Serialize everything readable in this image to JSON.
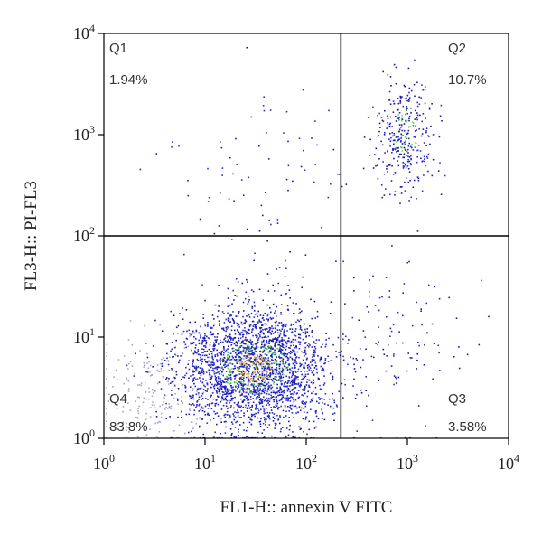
{
  "chart_data": {
    "type": "scatter",
    "xlabel": "FL1-H:: annexin V FITC",
    "ylabel": "FL3-H:: PI-FL3",
    "x_scale": "log",
    "y_scale": "log",
    "xlim": [
      1,
      10000
    ],
    "ylim": [
      1,
      10000
    ],
    "x_ticks": [
      {
        "value": 1,
        "base": "10",
        "exp": "0"
      },
      {
        "value": 10,
        "base": "10",
        "exp": "1"
      },
      {
        "value": 100,
        "base": "10",
        "exp": "2"
      },
      {
        "value": 1000,
        "base": "10",
        "exp": "3"
      },
      {
        "value": 10000,
        "base": "10",
        "exp": "4"
      }
    ],
    "y_ticks": [
      {
        "value": 1,
        "base": "10",
        "exp": "0"
      },
      {
        "value": 10,
        "base": "10",
        "exp": "1"
      },
      {
        "value": 100,
        "base": "10",
        "exp": "2"
      },
      {
        "value": 1000,
        "base": "10",
        "exp": "3"
      },
      {
        "value": 10000,
        "base": "10",
        "exp": "4"
      }
    ],
    "gates": {
      "x": 220,
      "y": 100
    },
    "quadrants": [
      {
        "name": "Q1",
        "percent": "1.94%",
        "position": "top-left"
      },
      {
        "name": "Q2",
        "percent": "10.7%",
        "position": "top-right"
      },
      {
        "name": "Q3",
        "percent": "3.58%",
        "position": "bottom-right"
      },
      {
        "name": "Q4",
        "percent": "83.8%",
        "position": "bottom-left"
      }
    ],
    "populations": [
      {
        "quadrant": "Q4",
        "center": [
          30,
          5
        ],
        "spread_log": [
          0.38,
          0.3
        ],
        "count": 2600
      },
      {
        "quadrant": "Q4",
        "center": [
          3,
          3
        ],
        "spread_log": [
          0.3,
          0.25
        ],
        "count": 180
      },
      {
        "quadrant": "Q2",
        "center": [
          950,
          1000
        ],
        "spread_log": [
          0.15,
          0.28
        ],
        "count": 330
      },
      {
        "quadrant": "Q3",
        "center": [
          800,
          8
        ],
        "spread_log": [
          0.3,
          0.45
        ],
        "count": 110
      },
      {
        "quadrant": "Q1",
        "center": [
          40,
          300
        ],
        "spread_log": [
          0.55,
          0.45
        ],
        "count": 90
      }
    ],
    "density_colors": [
      "#1a1aa8",
      "#2b2bd8",
      "#2fa84a",
      "#7ed957",
      "#f29a1a"
    ],
    "low_density_color": "#a8a8c8",
    "grid": false,
    "legend": "none"
  }
}
